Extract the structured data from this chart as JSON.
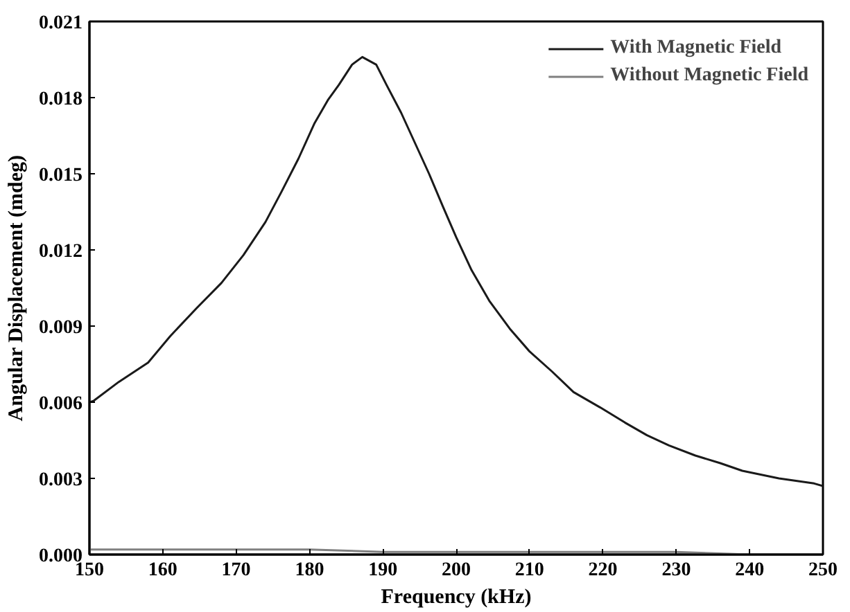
{
  "chart_data": {
    "type": "line",
    "xlabel": "Frequency (kHz)",
    "ylabel": "Angular Displacement (mdeg)",
    "xlim": [
      150,
      250
    ],
    "xticks": [
      150,
      160,
      170,
      180,
      190,
      200,
      210,
      220,
      230,
      240,
      250
    ],
    "ylim": [
      0,
      0.021
    ],
    "yticks": [
      {
        "value": 0,
        "label": "0.000"
      },
      {
        "value": 0.003,
        "label": "0.003"
      },
      {
        "value": 0.006,
        "label": "0.006"
      },
      {
        "value": 0.009,
        "label": "0.009"
      },
      {
        "value": 0.012,
        "label": "0.012"
      },
      {
        "value": 0.015,
        "label": "0.015"
      },
      {
        "value": 0.018,
        "label": "0.018"
      },
      {
        "value": 0.021,
        "label": "0.021"
      }
    ],
    "grid": false,
    "legend": "top right",
    "marker": "none",
    "line_style": "solid",
    "series": [
      {
        "name": "With Magnetic Field",
        "color": "#1a1a1a",
        "x": [
          150,
          150.6,
          154,
          158,
          161,
          164.6,
          168,
          171,
          174,
          176.2,
          178.5,
          180.7,
          182.5,
          184,
          185.8,
          187.2,
          189.1,
          190.5,
          192.5,
          194.4,
          196.3,
          198.2,
          200,
          202.1,
          204.5,
          207.3,
          210,
          213.1,
          216,
          219.6,
          223,
          226,
          229,
          232.6,
          236,
          239,
          244,
          248.8,
          250
        ],
        "values": [
          0.006,
          0.00606,
          0.0068,
          0.00756,
          0.0086,
          0.0097,
          0.0107,
          0.0118,
          0.0131,
          0.0143,
          0.0156,
          0.017,
          0.0179,
          0.0185,
          0.0193,
          0.0196,
          0.0193,
          0.0185,
          0.0174,
          0.0162,
          0.015,
          0.0137,
          0.0125,
          0.0112,
          0.01,
          0.0089,
          0.008,
          0.0072,
          0.0064,
          0.0058,
          0.0052,
          0.0047,
          0.0043,
          0.0039,
          0.0036,
          0.0033,
          0.003,
          0.0028,
          0.0027
        ]
      },
      {
        "name": "Without Magnetic Field",
        "color": "#808080",
        "x": [
          150,
          160,
          170,
          180,
          190,
          200,
          210,
          220,
          230,
          240,
          250
        ],
        "values": [
          0.0002,
          0.0002,
          0.0002,
          0.0002,
          0.0001,
          0.0001,
          0.0001,
          0.0001,
          0.0001,
          0,
          0
        ]
      }
    ]
  }
}
